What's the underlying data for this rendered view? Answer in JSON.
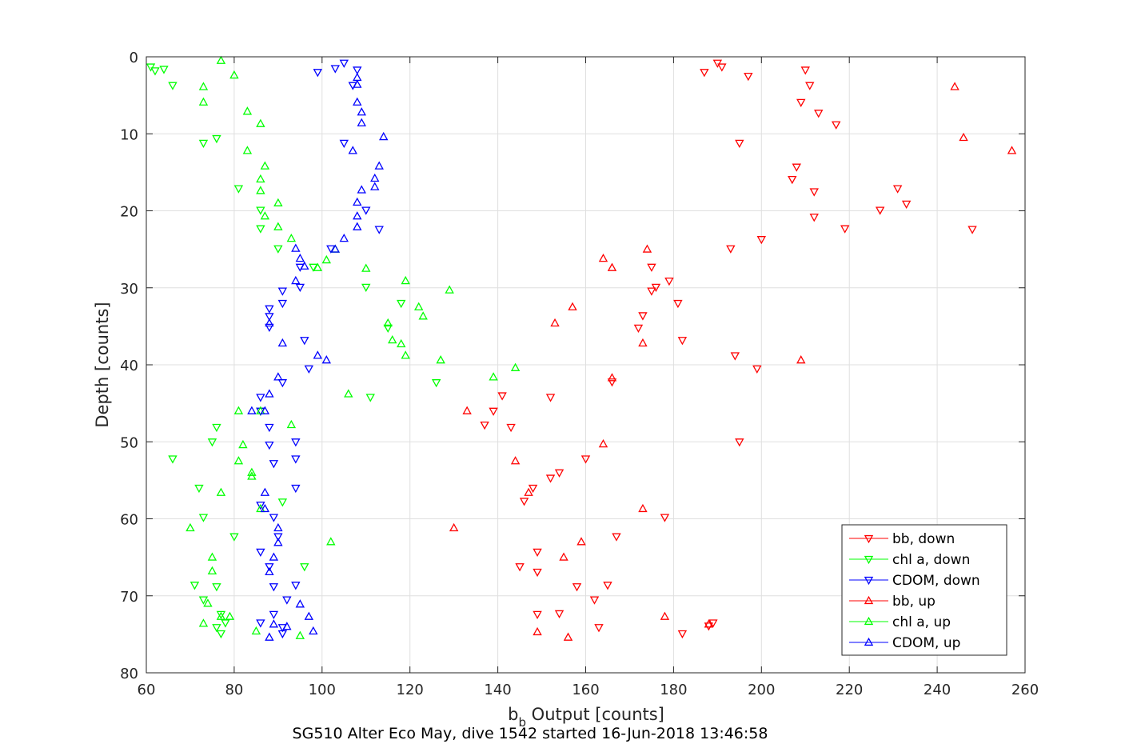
{
  "chart_data": {
    "type": "scatter",
    "title": "SG510 Alter Eco May, dive 1542 started 16-Jun-2018 13:46:58",
    "xlabel_main": "b",
    "xlabel_sub": "b",
    "xlabel_rest": " Output [counts]",
    "ylabel": "Depth [counts]",
    "xlim": [
      60,
      260
    ],
    "ylim": [
      0,
      80
    ],
    "y_reversed": true,
    "grid": true,
    "legend_position": "bottom-right",
    "xticks": [
      "60",
      "80",
      "100",
      "120",
      "140",
      "160",
      "180",
      "200",
      "220",
      "240",
      "260"
    ],
    "yticks": [
      "0",
      "10",
      "20",
      "30",
      "40",
      "50",
      "60",
      "70",
      "80"
    ],
    "series": [
      {
        "name": "bb, down",
        "color": "#ff0000",
        "marker": "triangle-down",
        "points": [
          [
            190,
            0.8
          ],
          [
            187,
            2.0
          ],
          [
            191,
            1.3
          ],
          [
            197,
            2.5
          ],
          [
            210,
            1.7
          ],
          [
            211,
            3.7
          ],
          [
            209,
            5.9
          ],
          [
            213,
            7.3
          ],
          [
            217,
            8.8
          ],
          [
            195,
            11.2
          ],
          [
            208,
            14.3
          ],
          [
            207,
            15.9
          ],
          [
            212,
            17.5
          ],
          [
            231,
            17.1
          ],
          [
            227,
            19.9
          ],
          [
            233,
            19.1
          ],
          [
            212,
            20.8
          ],
          [
            219,
            22.3
          ],
          [
            248,
            22.4
          ],
          [
            200,
            23.7
          ],
          [
            193,
            24.9
          ],
          [
            175,
            27.3
          ],
          [
            176,
            29.9
          ],
          [
            179,
            29.1
          ],
          [
            175,
            30.4
          ],
          [
            181,
            32.0
          ],
          [
            173,
            33.6
          ],
          [
            172,
            35.2
          ],
          [
            182,
            36.8
          ],
          [
            194,
            38.8
          ],
          [
            199,
            40.5
          ],
          [
            166,
            42.2
          ],
          [
            141,
            44.0
          ],
          [
            152,
            44.2
          ],
          [
            139,
            46.0
          ],
          [
            137,
            47.8
          ],
          [
            143,
            48.1
          ],
          [
            195,
            50.0
          ],
          [
            160,
            52.2
          ],
          [
            154,
            54.0
          ],
          [
            152,
            54.7
          ],
          [
            148,
            56.0
          ],
          [
            146,
            57.7
          ],
          [
            178,
            59.8
          ],
          [
            167,
            62.3
          ],
          [
            149,
            64.3
          ],
          [
            145,
            66.2
          ],
          [
            149,
            66.9
          ],
          [
            158,
            68.8
          ],
          [
            165,
            68.6
          ],
          [
            162,
            70.5
          ],
          [
            154,
            72.3
          ],
          [
            149,
            72.4
          ],
          [
            189,
            73.5
          ],
          [
            188,
            73.9
          ],
          [
            163,
            74.1
          ],
          [
            182,
            74.9
          ]
        ]
      },
      {
        "name": "chl a, down",
        "color": "#00ff00",
        "marker": "triangle-down",
        "points": [
          [
            61,
            1.3
          ],
          [
            62,
            1.8
          ],
          [
            64,
            1.6
          ],
          [
            66,
            3.7
          ],
          [
            73,
            11.2
          ],
          [
            76,
            10.6
          ],
          [
            81,
            17.1
          ],
          [
            86,
            19.9
          ],
          [
            86,
            22.3
          ],
          [
            90,
            24.9
          ],
          [
            98,
            27.3
          ],
          [
            110,
            29.9
          ],
          [
            118,
            32.0
          ],
          [
            115,
            35.2
          ],
          [
            126,
            42.3
          ],
          [
            111,
            44.2
          ],
          [
            86,
            46.0
          ],
          [
            76,
            48.1
          ],
          [
            75,
            50.0
          ],
          [
            66,
            52.2
          ],
          [
            72,
            56.0
          ],
          [
            73,
            59.8
          ],
          [
            91,
            57.8
          ],
          [
            80,
            62.3
          ],
          [
            96,
            66.2
          ],
          [
            76,
            68.8
          ],
          [
            71,
            68.6
          ],
          [
            73,
            70.5
          ],
          [
            77,
            72.4
          ],
          [
            78,
            73.5
          ],
          [
            76,
            74.1
          ],
          [
            77,
            74.9
          ]
        ]
      },
      {
        "name": "CDOM, down",
        "color": "#0000ff",
        "marker": "triangle-down",
        "points": [
          [
            105,
            0.8
          ],
          [
            99,
            2.0
          ],
          [
            103,
            1.5
          ],
          [
            108,
            1.7
          ],
          [
            107,
            3.7
          ],
          [
            105,
            11.2
          ],
          [
            110,
            19.9
          ],
          [
            113,
            22.4
          ],
          [
            102,
            24.9
          ],
          [
            95,
            27.3
          ],
          [
            95,
            29.9
          ],
          [
            91,
            30.4
          ],
          [
            91,
            32.0
          ],
          [
            88,
            32.7
          ],
          [
            88,
            33.7
          ],
          [
            88,
            35.1
          ],
          [
            96,
            36.8
          ],
          [
            97,
            40.5
          ],
          [
            91,
            42.3
          ],
          [
            86,
            44.2
          ],
          [
            86,
            46.0
          ],
          [
            88,
            48.1
          ],
          [
            88,
            50.4
          ],
          [
            94,
            50.0
          ],
          [
            89,
            52.8
          ],
          [
            94,
            52.2
          ],
          [
            94,
            56.0
          ],
          [
            86,
            58.2
          ],
          [
            89,
            59.8
          ],
          [
            90,
            62.3
          ],
          [
            86,
            64.3
          ],
          [
            88,
            66.2
          ],
          [
            94,
            68.6
          ],
          [
            89,
            68.8
          ],
          [
            92,
            70.5
          ],
          [
            89,
            72.4
          ],
          [
            86,
            73.5
          ],
          [
            91,
            74.1
          ],
          [
            91,
            74.9
          ]
        ]
      },
      {
        "name": "bb, up",
        "color": "#ff0000",
        "marker": "triangle-up",
        "points": [
          [
            244,
            3.9
          ],
          [
            246,
            10.5
          ],
          [
            257,
            12.2
          ],
          [
            174,
            25.0
          ],
          [
            164,
            26.2
          ],
          [
            166,
            27.4
          ],
          [
            157,
            32.5
          ],
          [
            153,
            34.6
          ],
          [
            173,
            37.2
          ],
          [
            209,
            39.4
          ],
          [
            166,
            41.7
          ],
          [
            133,
            46.0
          ],
          [
            164,
            50.3
          ],
          [
            144,
            52.5
          ],
          [
            147,
            56.6
          ],
          [
            173,
            58.7
          ],
          [
            130,
            61.2
          ],
          [
            159,
            63.0
          ],
          [
            155,
            65.0
          ],
          [
            178,
            72.7
          ],
          [
            188,
            73.7
          ],
          [
            149,
            74.7
          ],
          [
            156,
            75.4
          ]
        ]
      },
      {
        "name": "chl a, up",
        "color": "#00ff00",
        "marker": "triangle-up",
        "points": [
          [
            77,
            0.5
          ],
          [
            80,
            2.4
          ],
          [
            73,
            3.9
          ],
          [
            73,
            5.9
          ],
          [
            83,
            7.1
          ],
          [
            86,
            8.7
          ],
          [
            83,
            12.2
          ],
          [
            87,
            14.2
          ],
          [
            86,
            15.9
          ],
          [
            86,
            17.4
          ],
          [
            90,
            19.0
          ],
          [
            87,
            20.7
          ],
          [
            90,
            22.1
          ],
          [
            93,
            23.6
          ],
          [
            103,
            25.0
          ],
          [
            101,
            26.4
          ],
          [
            99,
            27.4
          ],
          [
            110,
            27.5
          ],
          [
            119,
            29.1
          ],
          [
            129,
            30.3
          ],
          [
            122,
            32.5
          ],
          [
            123,
            33.7
          ],
          [
            115,
            34.6
          ],
          [
            116,
            36.8
          ],
          [
            118,
            37.3
          ],
          [
            119,
            38.8
          ],
          [
            127,
            39.4
          ],
          [
            144,
            40.4
          ],
          [
            139,
            41.6
          ],
          [
            106,
            43.8
          ],
          [
            81,
            46.0
          ],
          [
            86,
            46.0
          ],
          [
            93,
            47.8
          ],
          [
            82,
            50.4
          ],
          [
            81,
            52.5
          ],
          [
            84,
            54.0
          ],
          [
            84,
            54.5
          ],
          [
            77,
            56.6
          ],
          [
            86,
            58.7
          ],
          [
            70,
            61.2
          ],
          [
            102,
            63.0
          ],
          [
            75,
            65.0
          ],
          [
            75,
            66.8
          ],
          [
            74,
            71.0
          ],
          [
            77,
            72.7
          ],
          [
            79,
            72.7
          ],
          [
            73,
            73.6
          ],
          [
            85,
            74.6
          ],
          [
            95,
            75.2
          ]
        ]
      },
      {
        "name": "CDOM, up",
        "color": "#0000ff",
        "marker": "triangle-up",
        "points": [
          [
            108,
            2.7
          ],
          [
            108,
            3.6
          ],
          [
            108,
            5.9
          ],
          [
            109,
            7.2
          ],
          [
            109,
            8.6
          ],
          [
            114,
            10.4
          ],
          [
            107,
            12.2
          ],
          [
            113,
            14.2
          ],
          [
            112,
            15.8
          ],
          [
            112,
            16.9
          ],
          [
            109,
            17.3
          ],
          [
            108,
            18.9
          ],
          [
            108,
            20.7
          ],
          [
            108,
            22.1
          ],
          [
            105,
            23.6
          ],
          [
            103,
            25.0
          ],
          [
            94,
            24.9
          ],
          [
            95,
            26.2
          ],
          [
            96,
            27.2
          ],
          [
            94,
            29.1
          ],
          [
            88,
            34.6
          ],
          [
            91,
            37.2
          ],
          [
            99,
            38.8
          ],
          [
            101,
            39.4
          ],
          [
            90,
            41.6
          ],
          [
            88,
            43.8
          ],
          [
            84,
            46.0
          ],
          [
            87,
            46.0
          ],
          [
            87,
            56.6
          ],
          [
            87,
            58.7
          ],
          [
            90,
            61.2
          ],
          [
            90,
            63.1
          ],
          [
            89,
            65.0
          ],
          [
            88,
            66.9
          ],
          [
            95,
            71.1
          ],
          [
            97,
            72.7
          ],
          [
            89,
            73.7
          ],
          [
            92,
            74.0
          ],
          [
            98,
            74.6
          ],
          [
            88,
            75.4
          ]
        ]
      }
    ]
  }
}
